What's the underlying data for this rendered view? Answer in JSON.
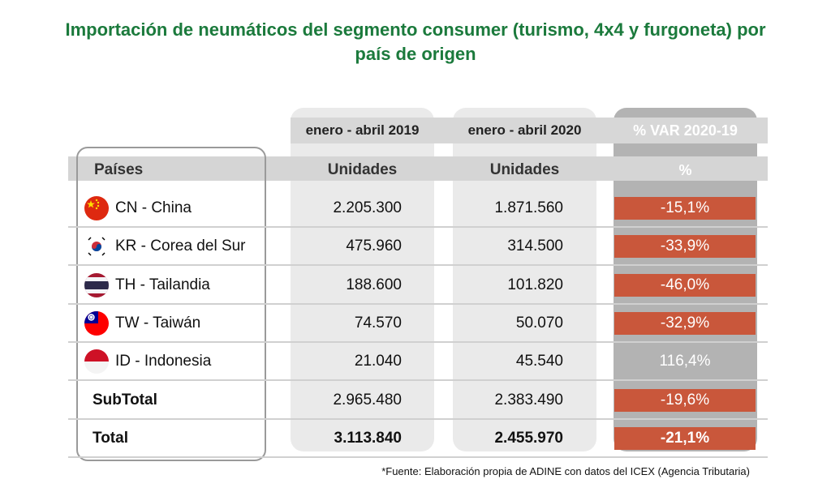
{
  "title_line1": "Importación de neumáticos del segmento consumer (turismo, 4x4 y furgoneta) por",
  "title_line2": "país de origen",
  "columns": {
    "period_2019": "enero - abril  2019",
    "period_2020": "enero - abril  2020",
    "var_title": "% VAR 2020-19",
    "country_header": "Países",
    "units_2019": "Unidades",
    "units_2020": "Unidades",
    "pct_header": "%"
  },
  "chart_data": {
    "type": "table",
    "columns": [
      "Países",
      "enero - abril  2019 (Unidades)",
      "enero - abril  2020 (Unidades)",
      "% VAR 2020-19"
    ],
    "rows": [
      {
        "country": "CN - China",
        "flag": "china-flag-icon",
        "v2019": "2.205.300",
        "v2020": "1.871.560",
        "var": "-15,1%",
        "negative": true
      },
      {
        "country": "KR - Corea del Sur",
        "flag": "south-korea-flag-icon",
        "v2019": "475.960",
        "v2020": "314.500",
        "var": "-33,9%",
        "negative": true
      },
      {
        "country": "TH - Tailandia",
        "flag": "thailand-flag-icon",
        "v2019": "188.600",
        "v2020": "101.820",
        "var": "-46,0%",
        "negative": true
      },
      {
        "country": "TW - Taiwán",
        "flag": "taiwan-flag-icon",
        "v2019": "74.570",
        "v2020": "50.070",
        "var": "-32,9%",
        "negative": true
      },
      {
        "country": "ID - Indonesia",
        "flag": "indonesia-flag-icon",
        "v2019": "21.040",
        "v2020": "45.540",
        "var": "116,4%",
        "negative": false
      }
    ],
    "subtotal": {
      "label": "SubTotal",
      "v2019": "2.965.480",
      "v2020": "2.383.490",
      "var": "-19,6%"
    },
    "total": {
      "label": "Total",
      "v2019": "3.113.840",
      "v2020": "2.455.970",
      "var": "-21,1%"
    }
  },
  "colors": {
    "title": "#1b7a3c",
    "negative_var": "#c9573b",
    "var_column": "#b3b3b3"
  },
  "source": "*Fuente: Elaboración propia de ADINE con datos del ICEX (Agencia Tributaria)"
}
